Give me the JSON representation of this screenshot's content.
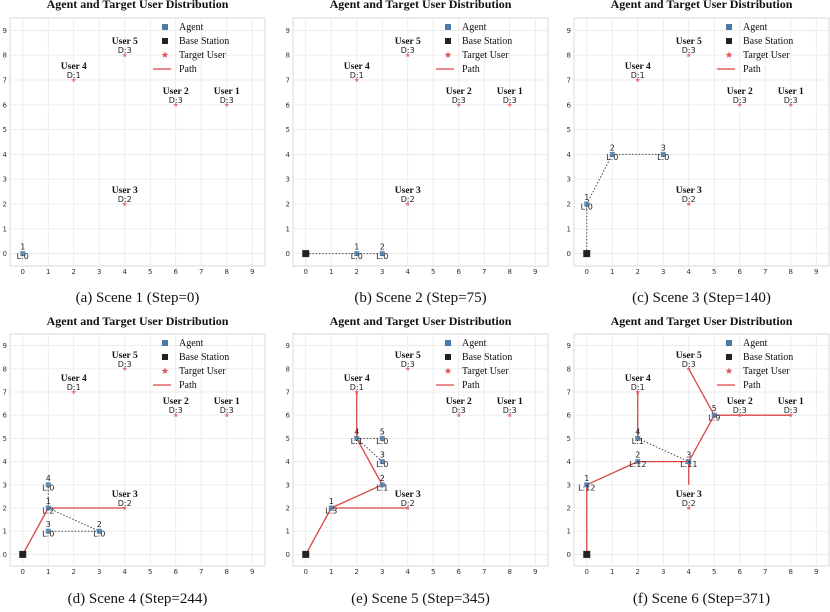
{
  "colors": {
    "agent": "#4a7aa8",
    "base_station": "#222222",
    "target": "#e0555a",
    "path": "#d94545",
    "link": "#444444",
    "grid": "#e6e6e6",
    "frame": "#cfcfcf"
  },
  "legend": [
    "Agent",
    "Base Station",
    "Target User",
    "Path"
  ],
  "chart_data": [
    {
      "type": "scatter",
      "title": "Agent and Target User Distribution",
      "caption": "(a) Scene 1 (Step=0)",
      "xlim": [
        -0.5,
        9.5
      ],
      "ylim": [
        -0.5,
        9.5
      ],
      "ticks": [
        0,
        1,
        2,
        3,
        4,
        5,
        6,
        7,
        8,
        9
      ],
      "base_station": null,
      "users": [
        {
          "name": "User 1",
          "demand": "D:3",
          "x": 8,
          "y": 6
        },
        {
          "name": "User 2",
          "demand": "D:3",
          "x": 6,
          "y": 6
        },
        {
          "name": "User 3",
          "demand": "D:2",
          "x": 4,
          "y": 2
        },
        {
          "name": "User 4",
          "demand": "D:1",
          "x": 2,
          "y": 7
        },
        {
          "name": "User 5",
          "demand": "D:3",
          "x": 4,
          "y": 8
        }
      ],
      "agents": [
        {
          "id": "1",
          "load": "L:0",
          "x": 0,
          "y": 0
        }
      ],
      "paths": [],
      "links": []
    },
    {
      "type": "scatter",
      "title": "Agent and Target User Distribution",
      "caption": "(b) Scene 2 (Step=75)",
      "xlim": [
        -0.5,
        9.5
      ],
      "ylim": [
        -0.5,
        9.5
      ],
      "ticks": [
        0,
        1,
        2,
        3,
        4,
        5,
        6,
        7,
        8,
        9
      ],
      "base_station": {
        "x": 0,
        "y": 0
      },
      "users": [
        {
          "name": "User 1",
          "demand": "D:3",
          "x": 8,
          "y": 6
        },
        {
          "name": "User 2",
          "demand": "D:3",
          "x": 6,
          "y": 6
        },
        {
          "name": "User 3",
          "demand": "D:2",
          "x": 4,
          "y": 2
        },
        {
          "name": "User 4",
          "demand": "D:1",
          "x": 2,
          "y": 7
        },
        {
          "name": "User 5",
          "demand": "D:3",
          "x": 4,
          "y": 8
        }
      ],
      "agents": [
        {
          "id": "1",
          "load": "L:0",
          "x": 2,
          "y": 0
        },
        {
          "id": "2",
          "load": "L:0",
          "x": 3,
          "y": 0
        }
      ],
      "paths": [],
      "links": [
        [
          [
            0,
            0
          ],
          [
            2,
            0
          ]
        ],
        [
          [
            2,
            0
          ],
          [
            3,
            0
          ]
        ]
      ]
    },
    {
      "type": "scatter",
      "title": "Agent and Target User Distribution",
      "caption": "(c) Scene 3 (Step=140)",
      "xlim": [
        -0.5,
        9.5
      ],
      "ylim": [
        -0.5,
        9.5
      ],
      "ticks": [
        0,
        1,
        2,
        3,
        4,
        5,
        6,
        7,
        8,
        9
      ],
      "base_station": {
        "x": 0,
        "y": 0
      },
      "users": [
        {
          "name": "User 1",
          "demand": "D:3",
          "x": 8,
          "y": 6
        },
        {
          "name": "User 2",
          "demand": "D:3",
          "x": 6,
          "y": 6
        },
        {
          "name": "User 3",
          "demand": "D:2",
          "x": 4,
          "y": 2
        },
        {
          "name": "User 4",
          "demand": "D:1",
          "x": 2,
          "y": 7
        },
        {
          "name": "User 5",
          "demand": "D:3",
          "x": 4,
          "y": 8
        }
      ],
      "agents": [
        {
          "id": "1",
          "load": "L:0",
          "x": 0,
          "y": 2
        },
        {
          "id": "2",
          "load": "L:0",
          "x": 1,
          "y": 4
        },
        {
          "id": "3",
          "load": "L:0",
          "x": 3,
          "y": 4
        }
      ],
      "paths": [],
      "links": [
        [
          [
            0,
            0
          ],
          [
            0,
            2
          ]
        ],
        [
          [
            0,
            2
          ],
          [
            1,
            4
          ]
        ],
        [
          [
            1,
            4
          ],
          [
            3,
            4
          ]
        ]
      ]
    },
    {
      "type": "scatter",
      "title": "Agent and Target User Distribution",
      "caption": "(d) Scene 4 (Step=244)",
      "xlim": [
        -0.5,
        9.5
      ],
      "ylim": [
        -0.5,
        9.5
      ],
      "ticks": [
        0,
        1,
        2,
        3,
        4,
        5,
        6,
        7,
        8,
        9
      ],
      "base_station": {
        "x": 0,
        "y": 0
      },
      "users": [
        {
          "name": "User 1",
          "demand": "D:3",
          "x": 8,
          "y": 6
        },
        {
          "name": "User 2",
          "demand": "D:3",
          "x": 6,
          "y": 6
        },
        {
          "name": "User 3",
          "demand": "D:2",
          "x": 4,
          "y": 2
        },
        {
          "name": "User 4",
          "demand": "D:1",
          "x": 2,
          "y": 7
        },
        {
          "name": "User 5",
          "demand": "D:3",
          "x": 4,
          "y": 8
        }
      ],
      "agents": [
        {
          "id": "1",
          "load": "L:2",
          "x": 1,
          "y": 2
        },
        {
          "id": "2",
          "load": "L:0",
          "x": 3,
          "y": 1
        },
        {
          "id": "3",
          "load": "L:0",
          "x": 1,
          "y": 1
        },
        {
          "id": "4",
          "load": "L:0",
          "x": 1,
          "y": 3
        }
      ],
      "paths": [
        [
          [
            0,
            0
          ],
          [
            1,
            2
          ]
        ],
        [
          [
            1,
            2
          ],
          [
            4,
            2
          ]
        ]
      ],
      "links": [
        [
          [
            1,
            2
          ],
          [
            3,
            1
          ]
        ],
        [
          [
            1,
            1
          ],
          [
            3,
            1
          ]
        ],
        [
          [
            1,
            2
          ],
          [
            1,
            3
          ]
        ]
      ]
    },
    {
      "type": "scatter",
      "title": "Agent and Target User Distribution",
      "caption": "(e) Scene 5 (Step=345)",
      "xlim": [
        -0.5,
        9.5
      ],
      "ylim": [
        -0.5,
        9.5
      ],
      "ticks": [
        0,
        1,
        2,
        3,
        4,
        5,
        6,
        7,
        8,
        9
      ],
      "base_station": {
        "x": 0,
        "y": 0
      },
      "users": [
        {
          "name": "User 1",
          "demand": "D:3",
          "x": 8,
          "y": 6
        },
        {
          "name": "User 2",
          "demand": "D:3",
          "x": 6,
          "y": 6
        },
        {
          "name": "User 3",
          "demand": "D:2",
          "x": 4,
          "y": 2
        },
        {
          "name": "User 4",
          "demand": "D:1",
          "x": 2,
          "y": 7
        },
        {
          "name": "User 5",
          "demand": "D:3",
          "x": 4,
          "y": 8
        }
      ],
      "agents": [
        {
          "id": "1",
          "load": "L:3",
          "x": 1,
          "y": 2
        },
        {
          "id": "2",
          "load": "L:1",
          "x": 3,
          "y": 3
        },
        {
          "id": "3",
          "load": "L:0",
          "x": 3,
          "y": 4
        },
        {
          "id": "4",
          "load": "L:1",
          "x": 2,
          "y": 5
        },
        {
          "id": "5",
          "load": "L:0",
          "x": 3,
          "y": 5
        }
      ],
      "paths": [
        [
          [
            0,
            0
          ],
          [
            1,
            2
          ]
        ],
        [
          [
            1,
            2
          ],
          [
            4,
            2
          ]
        ],
        [
          [
            1,
            2
          ],
          [
            3,
            3
          ]
        ],
        [
          [
            3,
            3
          ],
          [
            2,
            5
          ]
        ],
        [
          [
            2,
            5
          ],
          [
            2,
            7
          ]
        ]
      ],
      "links": [
        [
          [
            2,
            5
          ],
          [
            3,
            5
          ]
        ],
        [
          [
            2,
            5
          ],
          [
            3,
            4
          ]
        ]
      ]
    },
    {
      "type": "scatter",
      "title": "Agent and Target User Distribution",
      "caption": "(f) Scene 6 (Step=371)",
      "xlim": [
        -0.5,
        9.5
      ],
      "ylim": [
        -0.5,
        9.5
      ],
      "ticks": [
        0,
        1,
        2,
        3,
        4,
        5,
        6,
        7,
        8,
        9
      ],
      "base_station": {
        "x": 0,
        "y": 0
      },
      "users": [
        {
          "name": "User 1",
          "demand": "D:3",
          "x": 8,
          "y": 6
        },
        {
          "name": "User 2",
          "demand": "D:3",
          "x": 6,
          "y": 6
        },
        {
          "name": "User 3",
          "demand": "D:2",
          "x": 4,
          "y": 2
        },
        {
          "name": "User 4",
          "demand": "D:1",
          "x": 2,
          "y": 7
        },
        {
          "name": "User 5",
          "demand": "D:3",
          "x": 4,
          "y": 8
        }
      ],
      "agents": [
        {
          "id": "1",
          "load": "L:12",
          "x": 0,
          "y": 3
        },
        {
          "id": "2",
          "load": "L:12",
          "x": 2,
          "y": 4
        },
        {
          "id": "3",
          "load": "L:11",
          "x": 4,
          "y": 4
        },
        {
          "id": "4",
          "load": "L:1",
          "x": 2,
          "y": 5
        },
        {
          "id": "5",
          "load": "L:9",
          "x": 5,
          "y": 6
        }
      ],
      "paths": [
        [
          [
            0,
            0
          ],
          [
            0,
            3
          ]
        ],
        [
          [
            0,
            3
          ],
          [
            2,
            4
          ]
        ],
        [
          [
            2,
            4
          ],
          [
            4,
            4
          ]
        ],
        [
          [
            4,
            4
          ],
          [
            4,
            3
          ]
        ],
        [
          [
            4,
            4
          ],
          [
            5,
            6
          ]
        ],
        [
          [
            5,
            6
          ],
          [
            4,
            8
          ]
        ],
        [
          [
            5,
            6
          ],
          [
            8,
            6
          ]
        ],
        [
          [
            2,
            5
          ],
          [
            2,
            7
          ]
        ]
      ],
      "links": [
        [
          [
            2,
            5
          ],
          [
            4,
            4
          ]
        ]
      ]
    }
  ]
}
